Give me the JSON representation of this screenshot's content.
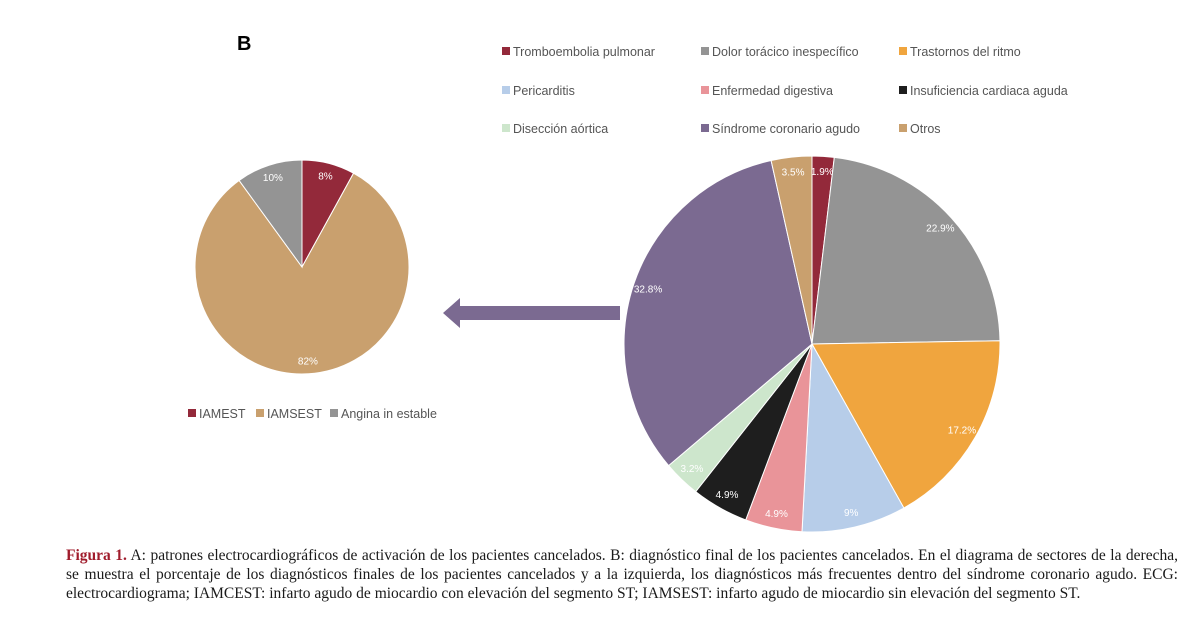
{
  "panel_letter": "B",
  "colors": {
    "arrow": "#7b6a91",
    "caption_label": "#a01c2c"
  },
  "chart_data": [
    {
      "type": "pie",
      "legend_position": "bottom",
      "slices": [
        {
          "name": "IAMEST",
          "value": 8,
          "label": "8%",
          "color": "#93293a",
          "label_color": "#ffffff"
        },
        {
          "name": "IAMSEST",
          "value": 82,
          "label": "82%",
          "color": "#c9a06e",
          "label_color": "#ffffff"
        },
        {
          "name": "Angina in estable",
          "value": 10,
          "label": "10%",
          "color": "#949494",
          "label_color": "#ffffff"
        }
      ]
    },
    {
      "type": "pie",
      "legend_position": "top",
      "slices": [
        {
          "name": "Tromboembolia pulmonar",
          "value": 1.9,
          "label": "1.9%",
          "color": "#93293a",
          "label_color": "#ffffff"
        },
        {
          "name": "Dolor torácico inespecífico",
          "value": 22.9,
          "label": "22.9%",
          "color": "#949494",
          "label_color": "#ffffff"
        },
        {
          "name": "Trastornos del ritmo",
          "value": 17.2,
          "label": "17.2%",
          "color": "#f0a53e",
          "label_color": "#ffffff"
        },
        {
          "name": "Pericarditis",
          "value": 9,
          "label": "9%",
          "color": "#b7cde9",
          "label_color": "#ffffff"
        },
        {
          "name": "Enfermedad digestiva",
          "value": 4.9,
          "label": "4.9%",
          "color": "#e99499",
          "label_color": "#ffffff"
        },
        {
          "name": "Insuficiencia cardiaca aguda",
          "value": 4.9,
          "label": "4.9%",
          "color": "#1e1e1e",
          "label_color": "#ffffff"
        },
        {
          "name": "Disección aórtica",
          "value": 3.2,
          "label": "3.2%",
          "color": "#cde6cc",
          "label_color": "#ffffff"
        },
        {
          "name": "Síndrome coronario agudo",
          "value": 32.8,
          "label": "32.8%",
          "color": "#7b6a91",
          "label_color": "#ffffff"
        },
        {
          "name": "Otros",
          "value": 3.5,
          "label": "3.5%",
          "color": "#c9a06e",
          "label_color": "#ffffff"
        }
      ]
    }
  ],
  "caption": {
    "label": "Figura 1.",
    "text": " A: patrones electrocardiográficos de activación de los pacientes cancelados. B: diagnóstico final de los pacientes cancelados. En el diagrama de sectores de la derecha, se muestra el porcentaje de los diagnósticos finales de los pacientes cancelados y a la izquierda, los diagnósticos más frecuentes dentro del síndrome coronario agudo. ECG: electrocardiograma; IAMCEST: infarto agudo de miocardio con elevación del segmento ST; IAMSEST: infarto agudo de miocardio sin elevación del segmento ST."
  }
}
